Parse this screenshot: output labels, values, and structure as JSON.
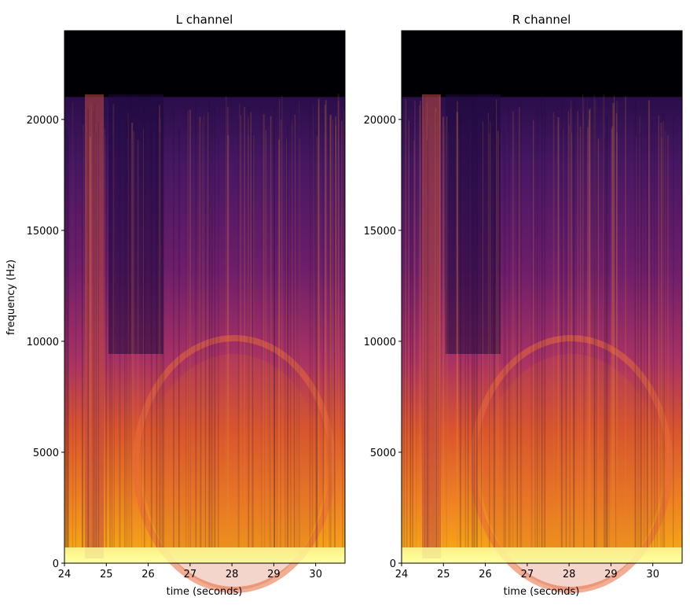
{
  "chart_data": [
    {
      "type": "heatmap",
      "title": "L channel",
      "xlabel": "time (seconds)",
      "ylabel": "frequency (Hz)",
      "xlim": [
        24,
        30.7
      ],
      "ylim": [
        0,
        24000
      ],
      "xticks": [
        24,
        25,
        26,
        27,
        28,
        29,
        30
      ],
      "yticks": [
        0,
        5000,
        10000,
        15000,
        20000
      ],
      "colormap": "inferno",
      "content_cutoff_hz": 21000,
      "notes": "Bright low-frequency band below ~500 Hz; circular pattern centred near 28.2 s, 5500 Hz"
    },
    {
      "type": "heatmap",
      "title": "R channel",
      "xlabel": "time (seconds)",
      "ylabel": "",
      "xlim": [
        24,
        30.7
      ],
      "ylim": [
        0,
        24000
      ],
      "xticks": [
        24,
        25,
        26,
        27,
        28,
        29,
        30
      ],
      "yticks": [
        0,
        5000,
        10000,
        15000,
        20000
      ],
      "colormap": "inferno",
      "content_cutoff_hz": 21000
    }
  ],
  "colors": {
    "background": "#000000",
    "dark": "#1b0c41",
    "purple": "#5a1a6e",
    "magenta": "#9e2a63",
    "orange": "#e05a25",
    "amber": "#f59b1a",
    "yellow": "#fcffa4"
  }
}
